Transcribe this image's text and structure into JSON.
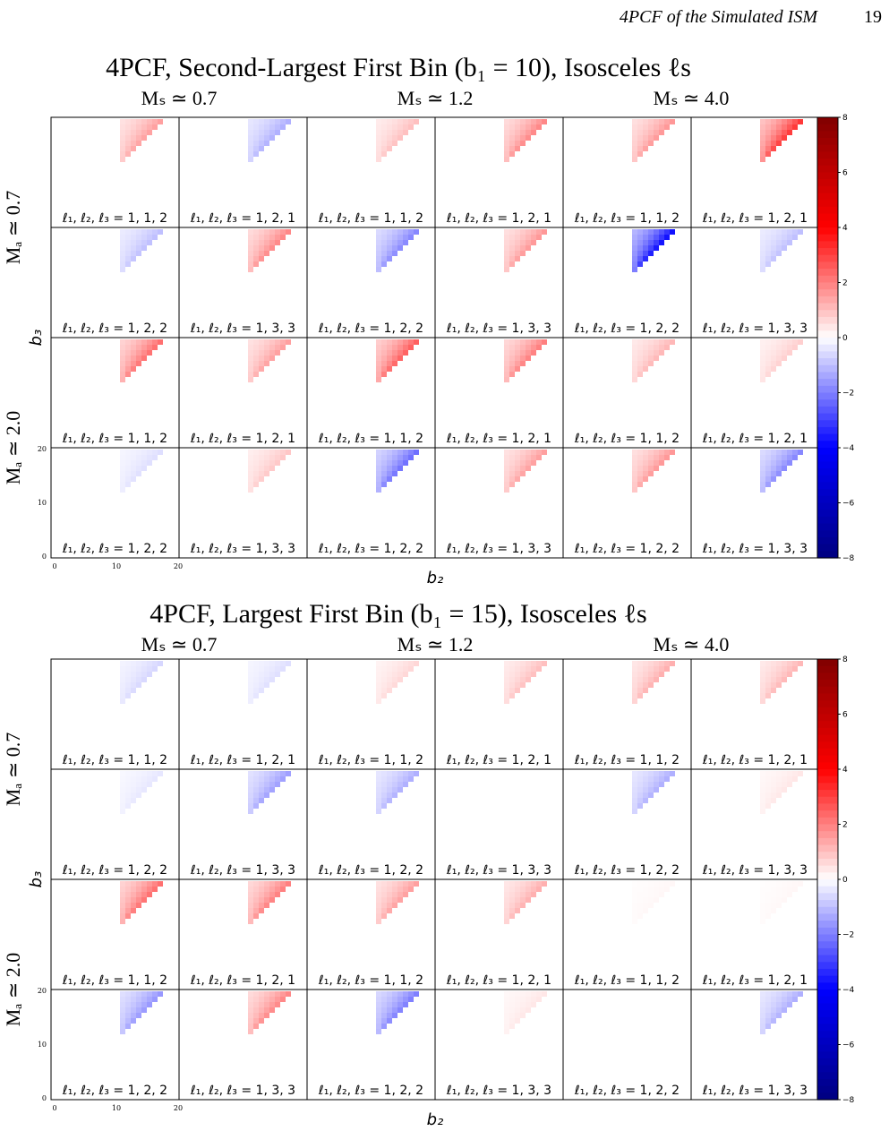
{
  "header": {
    "running_title": "4PCF of the Simulated ISM",
    "page_number": "19"
  },
  "figures": [
    {
      "title": "4PCF, Second-Largest First Bin (b₁ = 10), Isosceles ℓs",
      "columns": [
        "Mₛ ≃ 0.7",
        "Mₛ ≃ 1.2",
        "Mₛ ≃ 4.0"
      ],
      "rows": [
        "Mₐ ≃ 0.7",
        "Mₐ ≃ 2.0"
      ],
      "panels": [
        [
          "ℓ₁, ℓ₂, ℓ₃ = 1, 1, 2",
          "ℓ₁, ℓ₂, ℓ₃ = 1, 2, 1",
          "ℓ₁, ℓ₂, ℓ₃ = 1, 1, 2",
          "ℓ₁, ℓ₂, ℓ₃ = 1, 2, 1",
          "ℓ₁, ℓ₂, ℓ₃ = 1, 1, 2",
          "ℓ₁, ℓ₂, ℓ₃ = 1, 2, 1"
        ],
        [
          "ℓ₁, ℓ₂, ℓ₃ = 1, 2, 2",
          "ℓ₁, ℓ₂, ℓ₃ = 1, 3, 3",
          "ℓ₁, ℓ₂, ℓ₃ = 1, 2, 2",
          "ℓ₁, ℓ₂, ℓ₃ = 1, 3, 3",
          "ℓ₁, ℓ₂, ℓ₃ = 1, 2, 2",
          "ℓ₁, ℓ₂, ℓ₃ = 1, 3, 3"
        ],
        [
          "ℓ₁, ℓ₂, ℓ₃ = 1, 1, 2",
          "ℓ₁, ℓ₂, ℓ₃ = 1, 2, 1",
          "ℓ₁, ℓ₂, ℓ₃ = 1, 1, 2",
          "ℓ₁, ℓ₂, ℓ₃ = 1, 2, 1",
          "ℓ₁, ℓ₂, ℓ₃ = 1, 1, 2",
          "ℓ₁, ℓ₂, ℓ₃ = 1, 2, 1"
        ],
        [
          "ℓ₁, ℓ₂, ℓ₃ = 1, 2, 2",
          "ℓ₁, ℓ₂, ℓ₃ = 1, 3, 3",
          "ℓ₁, ℓ₂, ℓ₃ = 1, 2, 2",
          "ℓ₁, ℓ₂, ℓ₃ = 1, 3, 3",
          "ℓ₁, ℓ₂, ℓ₃ = 1, 2, 2",
          "ℓ₁, ℓ₂, ℓ₃ = 1, 3, 3"
        ]
      ],
      "panel_values": [
        [
          1.2,
          -1.0,
          0.8,
          1.5,
          1.3,
          2.5
        ],
        [
          -0.8,
          1.5,
          -1.5,
          1.3,
          -3.0,
          -0.8
        ],
        [
          1.8,
          1.2,
          2.0,
          1.6,
          0.9,
          0.6
        ],
        [
          -0.4,
          0.7,
          -1.8,
          1.2,
          1.3,
          -1.5
        ]
      ],
      "xlabel": "b₂",
      "ylabel": "b₃",
      "ticks": [
        "0",
        "10",
        "20"
      ],
      "colorbar_ticks": [
        "8",
        "6",
        "4",
        "2",
        "0",
        "−2",
        "−4",
        "−6",
        "−8"
      ]
    },
    {
      "title": "4PCF, Largest First Bin (b₁ = 15), Isosceles ℓs",
      "columns": [
        "Mₛ ≃ 0.7",
        "Mₛ ≃ 1.2",
        "Mₛ ≃ 4.0"
      ],
      "rows": [
        "Mₐ ≃ 0.7",
        "Mₐ ≃ 2.0"
      ],
      "panels": [
        [
          "ℓ₁, ℓ₂, ℓ₃ = 1, 1, 2",
          "ℓ₁, ℓ₂, ℓ₃ = 1, 2, 1",
          "ℓ₁, ℓ₂, ℓ₃ = 1, 1, 2",
          "ℓ₁, ℓ₂, ℓ₃ = 1, 2, 1",
          "ℓ₁, ℓ₂, ℓ₃ = 1, 1, 2",
          "ℓ₁, ℓ₂, ℓ₃ = 1, 2, 1"
        ],
        [
          "ℓ₁, ℓ₂, ℓ₃ = 1, 2, 2",
          "ℓ₁, ℓ₂, ℓ₃ = 1, 3, 3",
          "ℓ₁, ℓ₂, ℓ₃ = 1, 2, 2",
          "ℓ₁, ℓ₂, ℓ₃ = 1, 3, 3",
          "ℓ₁, ℓ₂, ℓ₃ = 1, 2, 2",
          "ℓ₁, ℓ₂, ℓ₃ = 1, 3, 3"
        ],
        [
          "ℓ₁, ℓ₂, ℓ₃ = 1, 1, 2",
          "ℓ₁, ℓ₂, ℓ₃ = 1, 2, 1",
          "ℓ₁, ℓ₂, ℓ₃ = 1, 1, 2",
          "ℓ₁, ℓ₂, ℓ₃ = 1, 2, 1",
          "ℓ₁, ℓ₂, ℓ₃ = 1, 1, 2",
          "ℓ₁, ℓ₂, ℓ₃ = 1, 2, 1"
        ],
        [
          "ℓ₁, ℓ₂, ℓ₃ = 1, 2, 2",
          "ℓ₁, ℓ₂, ℓ₃ = 1, 3, 3",
          "ℓ₁, ℓ₂, ℓ₃ = 1, 2, 2",
          "ℓ₁, ℓ₂, ℓ₃ = 1, 3, 3",
          "ℓ₁, ℓ₂, ℓ₃ = 1, 2, 2",
          "ℓ₁, ℓ₂, ℓ₃ = 1, 3, 3"
        ]
      ],
      "panel_values": [
        [
          -0.5,
          -0.4,
          0.5,
          0.8,
          1.0,
          0.9
        ],
        [
          -0.3,
          -1.2,
          -1.0,
          0,
          -1.0,
          0.3
        ],
        [
          1.8,
          1.6,
          1.2,
          1.0,
          0.1,
          0.1
        ],
        [
          -1.3,
          1.5,
          -1.6,
          0.3,
          0,
          -1.0
        ]
      ],
      "xlabel": "b₂",
      "ylabel": "b₃",
      "ticks": [
        "0",
        "10",
        "20"
      ],
      "colorbar_ticks": [
        "8",
        "6",
        "4",
        "2",
        "0",
        "−2",
        "−4",
        "−6",
        "−8"
      ]
    }
  ],
  "colors": {
    "positive": "#ff0000",
    "negative": "#0000ff",
    "positive_max": "#800000",
    "negative_max": "#000080"
  }
}
